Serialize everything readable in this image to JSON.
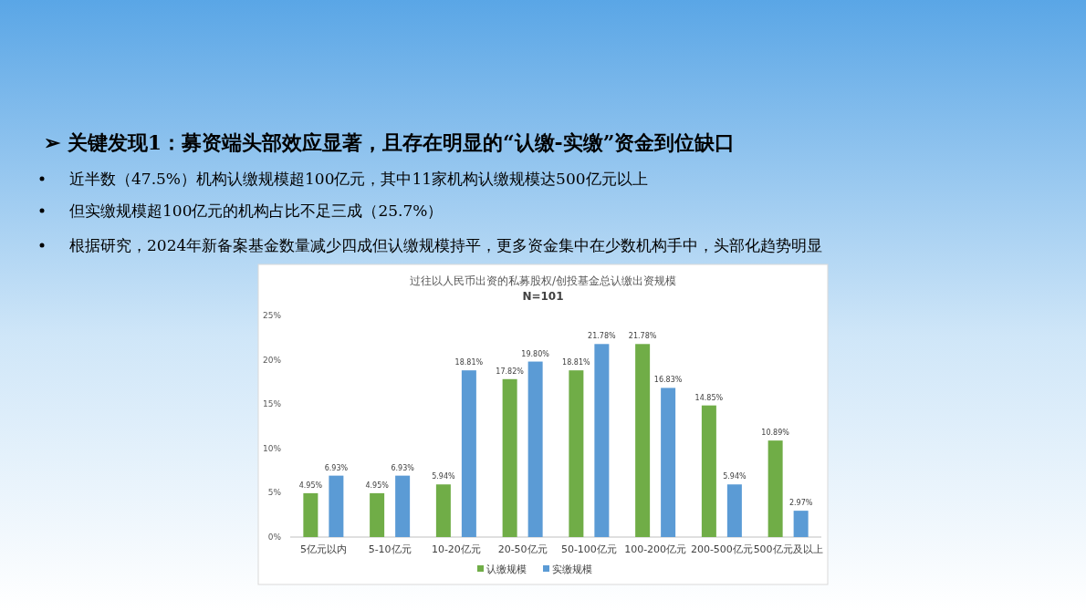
{
  "chart_data": {
    "type": "bar",
    "title": "过往以人民币出资的私募股权/创投基金总认缴出资规模",
    "subtitle": "N=101",
    "annotations": [
      "➢ 关键发现1：募资端头部效应显著，且存在明显的“认缴-实缴”资金到位缺口",
      "近半数（47.5%）机构认缴规模超100亿元，其中11家机构认缴规模达500亿元以上",
      "但实缴规模超100亿元的机构占比不足三成（25.7%）",
      "根据研究，2024年新备案基金数量减少四成但认缴规模持平，更多资金集中在少数机构手中，头部化趋势明显"
    ],
    "categories": [
      "5亿元以内",
      "5-10亿元",
      "10-20亿元",
      "20-50亿元",
      "50-100亿元",
      "100-200亿元",
      "200-500亿元",
      "500亿元及以上"
    ],
    "series": [
      {
        "name": "认缴规模",
        "color": "#70ad47",
        "values": [
          4.95,
          4.95,
          5.94,
          17.82,
          18.81,
          21.78,
          14.85,
          10.89
        ],
        "value_labels": [
          "4.95%",
          "4.95%",
          "5.94%",
          "17.82%",
          "18.81%",
          "21.78%",
          "14.85%",
          "10.89%"
        ]
      },
      {
        "name": "实缴规模",
        "color": "#5b9bd5",
        "values": [
          6.93,
          6.93,
          18.81,
          19.8,
          21.78,
          16.83,
          5.94,
          2.97
        ],
        "value_labels": [
          "6.93%",
          "6.93%",
          "18.81%",
          "19.80%",
          "21.78%",
          "16.83%",
          "5.94%",
          "2.97%"
        ]
      }
    ],
    "ylim": [
      0,
      25
    ],
    "yticks": [
      {
        "value": 0,
        "label": "0%"
      },
      {
        "value": 5,
        "label": "5%"
      },
      {
        "value": 10,
        "label": "10%"
      },
      {
        "value": 15,
        "label": "15%"
      },
      {
        "value": 20,
        "label": "20%"
      },
      {
        "value": 25,
        "label": "25%"
      }
    ],
    "legend": "bottom"
  }
}
